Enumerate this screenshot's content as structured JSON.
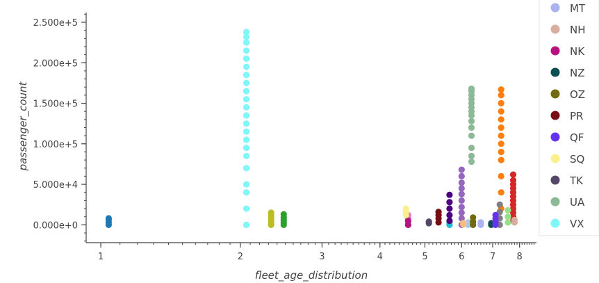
{
  "chart_data": {
    "type": "scatter",
    "title": "",
    "xlabel": "fleet_age_distribution",
    "ylabel": "passenger_count",
    "xscale": "log",
    "xlim": [
      0.93,
      8.7
    ],
    "ylim": [
      -22000,
      262000
    ],
    "xticks": [
      1,
      2,
      3,
      4,
      5,
      6,
      7,
      8
    ],
    "xtick_labels": [
      "1",
      "2",
      "3",
      "4",
      "5",
      "6",
      "7",
      "8"
    ],
    "yticks": [
      0,
      50000,
      100000,
      150000,
      200000,
      250000
    ],
    "ytick_labels": [
      "0.000e+0",
      "5.000e+4",
      "1.000e+5",
      "1.500e+5",
      "2.000e+5",
      "2.500e+5"
    ],
    "grid": false,
    "legend_position": "right",
    "series": [
      {
        "color": "#1f77b4",
        "x": 1.04,
        "y": [
          0,
          3000,
          6000,
          8000
        ]
      },
      {
        "color": "#aec7e8",
        "x": 6.2,
        "y": [
          0,
          3000
        ]
      },
      {
        "color": "#ff7f0e",
        "x": 7.3,
        "y": [
          20000,
          40000,
          60000,
          80000,
          90000,
          100000,
          110000,
          120000,
          130000,
          140000,
          150000,
          160000,
          167000
        ]
      },
      {
        "color": "#d62728",
        "x": 7.75,
        "y": [
          5000,
          10000,
          15000,
          20000,
          25000,
          30000,
          35000,
          40000,
          45000,
          50000,
          55000,
          62000
        ]
      },
      {
        "color": "#bcbd22",
        "x": 2.33,
        "y": [
          0,
          3000,
          6000,
          9000,
          12000,
          15000
        ]
      },
      {
        "color": "#2ca02c",
        "x": 2.48,
        "y": [
          0,
          3000,
          6000,
          9000,
          13000
        ]
      },
      {
        "color": "#9467bd",
        "x": 6.0,
        "y": [
          0,
          8000,
          15000,
          22000,
          30000,
          38000,
          45000,
          52000,
          60000,
          68000
        ]
      },
      {
        "color": "#ffbb78",
        "x": 6.05,
        "y": [
          500,
          2000
        ]
      },
      {
        "color": "#17becf",
        "x": 5.65,
        "y": [
          0,
          3000
        ]
      },
      {
        "color": "#7f7f7f",
        "x": 7.25,
        "y": [
          0,
          8000,
          16000,
          25000
        ]
      },
      {
        "color": "#e377c2",
        "x": 4.6,
        "y": [
          0,
          4000,
          8000,
          12000
        ]
      },
      {
        "color": "#98df8a",
        "x": 7.55,
        "y": [
          3000,
          10000,
          18000
        ]
      },
      {
        "color": "#4b0082",
        "x": 5.65,
        "y": [
          5000,
          12000,
          20000,
          28000,
          37000
        ]
      }
    ],
    "legend": [
      {
        "label": "MT",
        "color": "#aab2f0",
        "x": 6.6,
        "y": [
          0,
          3000
        ]
      },
      {
        "label": "NH",
        "color": "#d9ad9f",
        "x": 7.8,
        "y": [
          3000,
          6000
        ]
      },
      {
        "label": "NK",
        "color": "#b5137f",
        "x": 4.6,
        "y": [
          0,
          5000
        ]
      },
      {
        "label": "NZ",
        "color": "#0b4f52",
        "x": 6.95,
        "y": [
          0,
          2000
        ]
      },
      {
        "label": "OZ",
        "color": "#6f6b0e",
        "x": 6.35,
        "y": [
          0,
          4000,
          9000
        ]
      },
      {
        "label": "PR",
        "color": "#750d14",
        "x": 5.35,
        "y": [
          3000,
          8000,
          12000,
          16000
        ]
      },
      {
        "label": "QF",
        "color": "#6532f0",
        "x": 7.1,
        "y": [
          0,
          4000,
          8000,
          12000
        ]
      },
      {
        "label": "SQ",
        "color": "#faf18e",
        "x": 4.55,
        "y": [
          12000,
          16000,
          20000
        ]
      },
      {
        "label": "TK",
        "color": "#544767",
        "x": 5.1,
        "y": [
          2000,
          4000
        ]
      },
      {
        "label": "UA",
        "color": "#8cb996",
        "x": 6.3,
        "y": [
          78000,
          85000,
          95000,
          110000,
          120000,
          128000,
          135000,
          140000,
          145000,
          150000,
          155000,
          160000,
          165000,
          168000
        ]
      },
      {
        "label": "VX",
        "color": "#82f5f8",
        "x": 2.06,
        "y": [
          0,
          20000,
          40000,
          50000,
          70000,
          85000,
          95000,
          105000,
          115000,
          125000,
          135000,
          145000,
          155000,
          165000,
          175000,
          185000,
          195000,
          205000,
          215000,
          225000,
          232000,
          238000
        ]
      }
    ]
  }
}
